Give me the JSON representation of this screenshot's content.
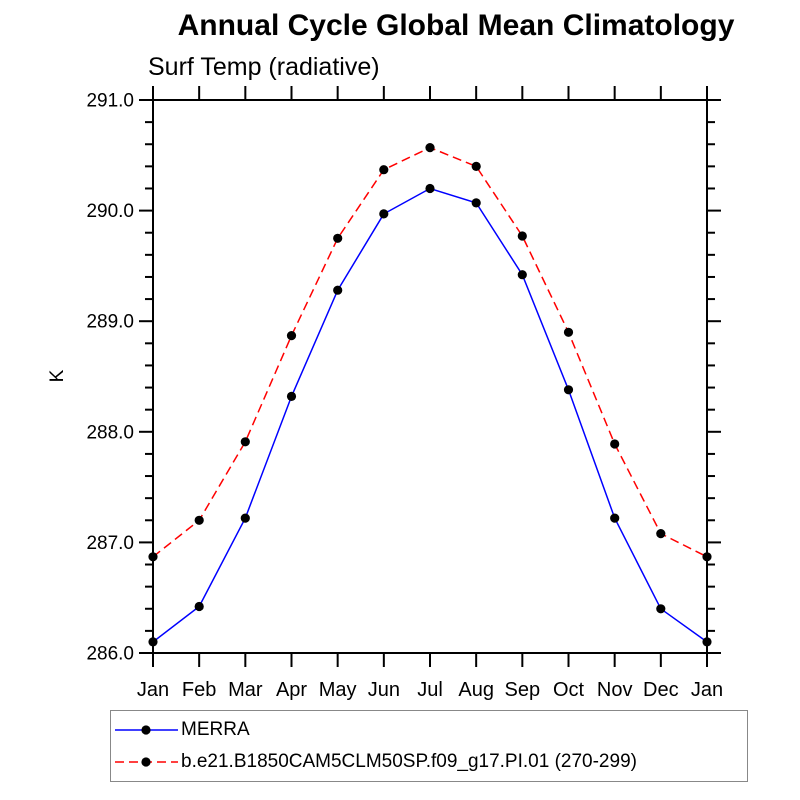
{
  "chart_data": {
    "type": "line",
    "title": "Annual Cycle Global Mean Climatology",
    "subtitle": "Surf Temp (radiative)",
    "xlabel": "",
    "ylabel": "K",
    "categories": [
      "Jan",
      "Feb",
      "Mar",
      "Apr",
      "May",
      "Jun",
      "Jul",
      "Aug",
      "Sep",
      "Oct",
      "Nov",
      "Dec",
      "Jan"
    ],
    "ylim": [
      286.0,
      291.0
    ],
    "y_major_step": 1.0,
    "y_minor_step": 0.2,
    "y_tick_labels": [
      "286.0",
      "287.0",
      "288.0",
      "289.0",
      "290.0",
      "291.0"
    ],
    "grid": false,
    "legend_position": "bottom-left",
    "axis_color": "#000000",
    "marker": "filled-circle",
    "marker_color": "#000000",
    "series": [
      {
        "name": "MERRA",
        "color": "#0000ff",
        "line_style": "solid",
        "values": [
          286.1,
          286.42,
          287.22,
          288.32,
          289.28,
          289.97,
          290.2,
          290.07,
          289.42,
          288.38,
          287.22,
          286.4,
          286.1
        ]
      },
      {
        "name": "b.e21.B1850CAM5CLM50SP.f09_g17.PI.01 (270-299)",
        "color": "#ff0000",
        "line_style": "dashed",
        "values": [
          286.87,
          287.2,
          287.91,
          288.87,
          289.75,
          290.37,
          290.57,
          290.4,
          289.77,
          288.9,
          287.89,
          287.08,
          286.87
        ]
      }
    ]
  }
}
